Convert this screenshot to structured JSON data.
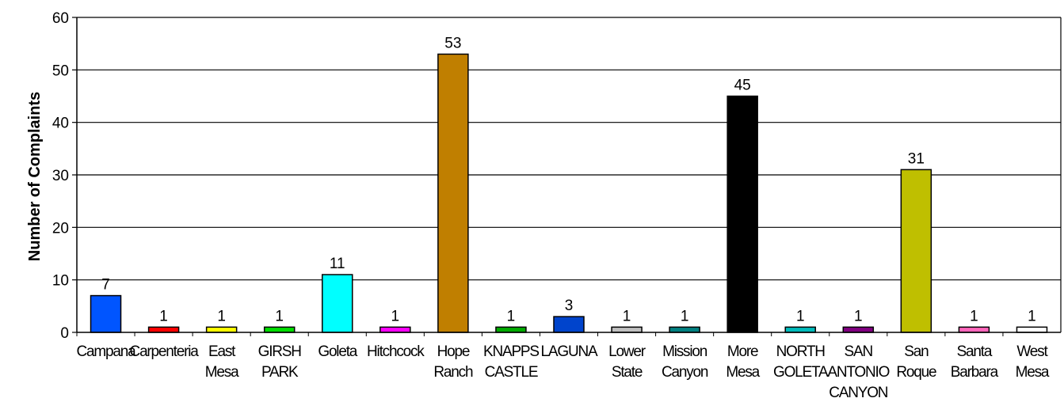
{
  "chart_data": {
    "type": "bar",
    "title": "",
    "xlabel": "",
    "ylabel": "Number of Complaints",
    "ylim": [
      0,
      60
    ],
    "yticks": [
      0,
      10,
      20,
      30,
      40,
      50,
      60
    ],
    "grid": true,
    "categories": [
      "Campana",
      "Carpenteria",
      "East Mesa",
      "GIRSH PARK",
      "Goleta",
      "Hitchcock",
      "Hope Ranch",
      "KNAPPS CASTLE",
      "LAGUNA",
      "Lower State",
      "Mission Canyon",
      "More Mesa",
      "NORTH GOLETA",
      "SAN ANTONIO CANYON",
      "San Roque",
      "Santa Barbara",
      "West Mesa"
    ],
    "category_lines": [
      [
        "Campana"
      ],
      [
        "Carpenteria"
      ],
      [
        "East",
        "Mesa"
      ],
      [
        "GIRSH",
        "PARK"
      ],
      [
        "Goleta"
      ],
      [
        "Hitchcock"
      ],
      [
        "Hope",
        "Ranch"
      ],
      [
        "KNAPPS",
        "CASTLE"
      ],
      [
        "LAGUNA"
      ],
      [
        "Lower",
        "State"
      ],
      [
        "Mission",
        "Canyon"
      ],
      [
        "More",
        "Mesa"
      ],
      [
        "NORTH",
        "GOLETA"
      ],
      [
        "SAN",
        "ANTONIO",
        "CANYON"
      ],
      [
        "San",
        "Roque"
      ],
      [
        "Santa",
        "Barbara"
      ],
      [
        "West",
        "Mesa"
      ]
    ],
    "values": [
      7,
      1,
      1,
      1,
      11,
      1,
      53,
      1,
      3,
      1,
      1,
      45,
      1,
      1,
      31,
      1,
      1
    ],
    "colors": [
      "#0055ff",
      "#ff0000",
      "#ffff00",
      "#00dd00",
      "#00ffff",
      "#ff00ff",
      "#c07f00",
      "#00aa00",
      "#0044cc",
      "#c0c0c0",
      "#008080",
      "#000000",
      "#00bbbb",
      "#800080",
      "#bfbf00",
      "#ff66bb",
      "#ffffff"
    ]
  }
}
